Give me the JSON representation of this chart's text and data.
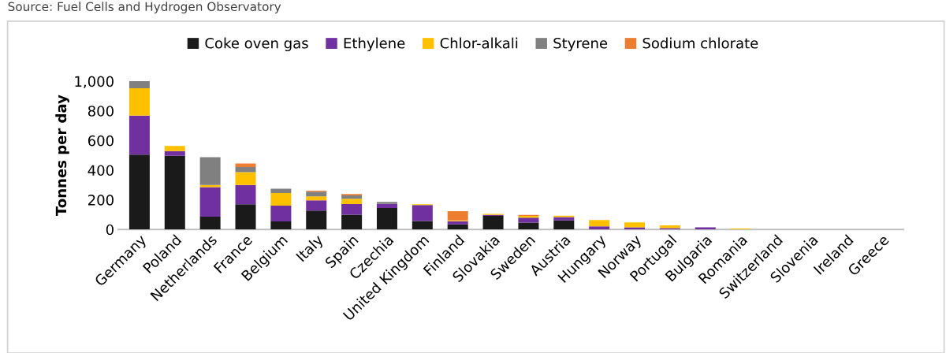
{
  "chart_data": {
    "type": "bar",
    "stacked": true,
    "ylabel": "Tonnes per day",
    "annotations": [
      "Source: Fuel Cells and Hydrogen Observatory"
    ],
    "categories": [
      "Germany",
      "Poland",
      "Netherlands",
      "France",
      "Belgium",
      "Italy",
      "Spain",
      "Czechia",
      "United Kingdom",
      "Finland",
      "Slovakia",
      "Sweden",
      "Austria",
      "Hungary",
      "Norway",
      "Portugal",
      "Bulgaria",
      "Romania",
      "Switzerland",
      "Slovenia",
      "Ireland",
      "Greece"
    ],
    "series": [
      {
        "name": "Coke oven gas",
        "color": "#1a1a1a",
        "values": [
          505,
          497,
          86,
          170,
          54,
          127,
          100,
          145,
          57,
          34,
          91,
          46,
          61,
          0,
          0,
          0,
          0,
          0,
          0,
          0,
          0,
          0
        ]
      },
      {
        "name": "Ethylene",
        "color": "#7030a0",
        "values": [
          263,
          32,
          200,
          130,
          107,
          69,
          71,
          28,
          107,
          21,
          7,
          33,
          23,
          21,
          14,
          9,
          14,
          0,
          0,
          0,
          0,
          0
        ]
      },
      {
        "name": "Chlor-alkali",
        "color": "#ffc000",
        "values": [
          184,
          34,
          14,
          86,
          85,
          27,
          36,
          0,
          6,
          6,
          7,
          12,
          9,
          42,
          34,
          18,
          0,
          6,
          0,
          0,
          0,
          0
        ]
      },
      {
        "name": "Styrene",
        "color": "#808080",
        "values": [
          48,
          0,
          188,
          35,
          29,
          32,
          22,
          13,
          0,
          0,
          0,
          0,
          0,
          0,
          0,
          0,
          0,
          0,
          0,
          0,
          0,
          0
        ]
      },
      {
        "name": "Sodium chlorate",
        "color": "#ed7d31",
        "values": [
          0,
          0,
          0,
          24,
          0,
          6,
          10,
          0,
          0,
          62,
          0,
          7,
          0,
          0,
          0,
          0,
          0,
          0,
          0,
          0,
          0,
          0
        ]
      }
    ],
    "ylim": [
      0,
      1000
    ],
    "yticks": [
      0,
      200,
      400,
      600,
      800,
      {
        "value": 1000,
        "label": "1,000"
      }
    ],
    "grid": false,
    "legend": "top"
  }
}
